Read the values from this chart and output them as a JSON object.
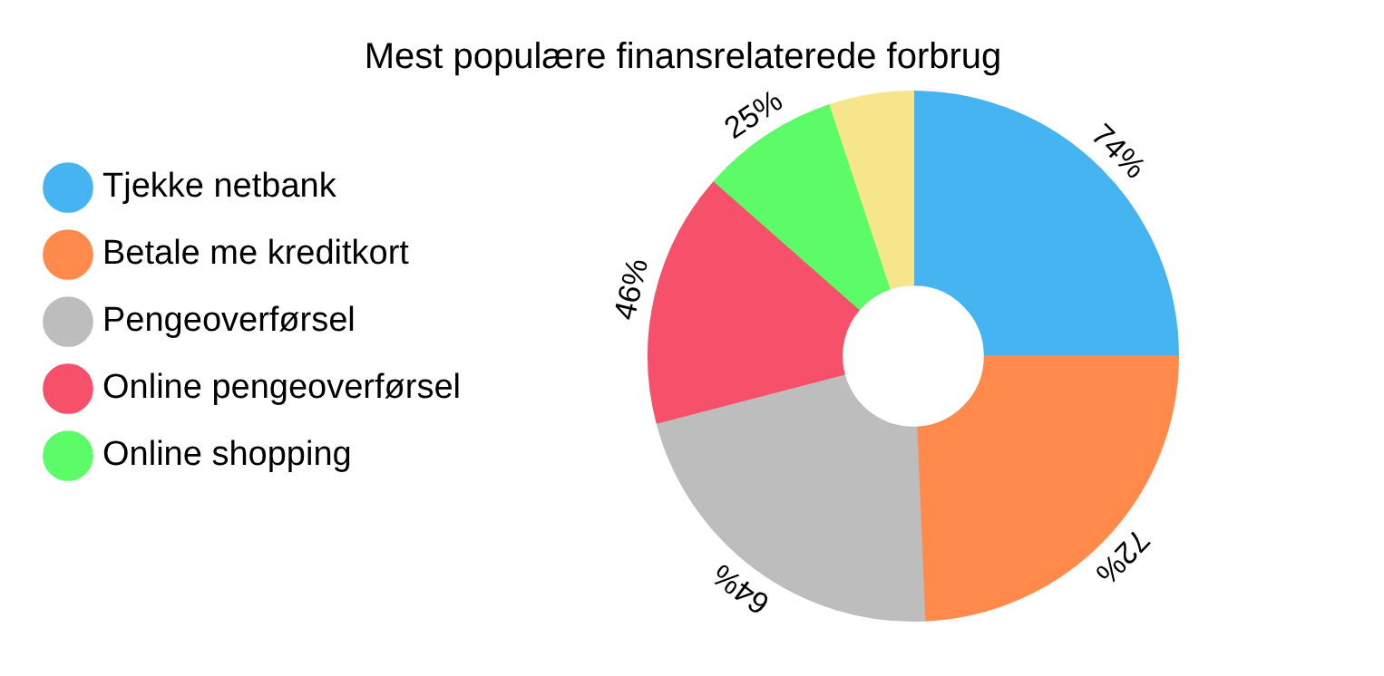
{
  "chart_data": {
    "type": "donut",
    "title": "Mest populære finansrelaterede forbrug",
    "categories": [
      "Tjekke netbank",
      "Betale me kreditkort",
      "Pengeoverførsel",
      "Online pengeoverførsel",
      "Online shopping",
      null
    ],
    "values": [
      74,
      72,
      64,
      46,
      25,
      15
    ],
    "value_labels": [
      "74%",
      "72%",
      "64%",
      "46%",
      "25%",
      null
    ],
    "colors": [
      "#45b4f0",
      "#ff8a4c",
      "#bdbdbd",
      "#f6506a",
      "#5cfc68",
      "#f7e58c"
    ],
    "legend": "left"
  }
}
